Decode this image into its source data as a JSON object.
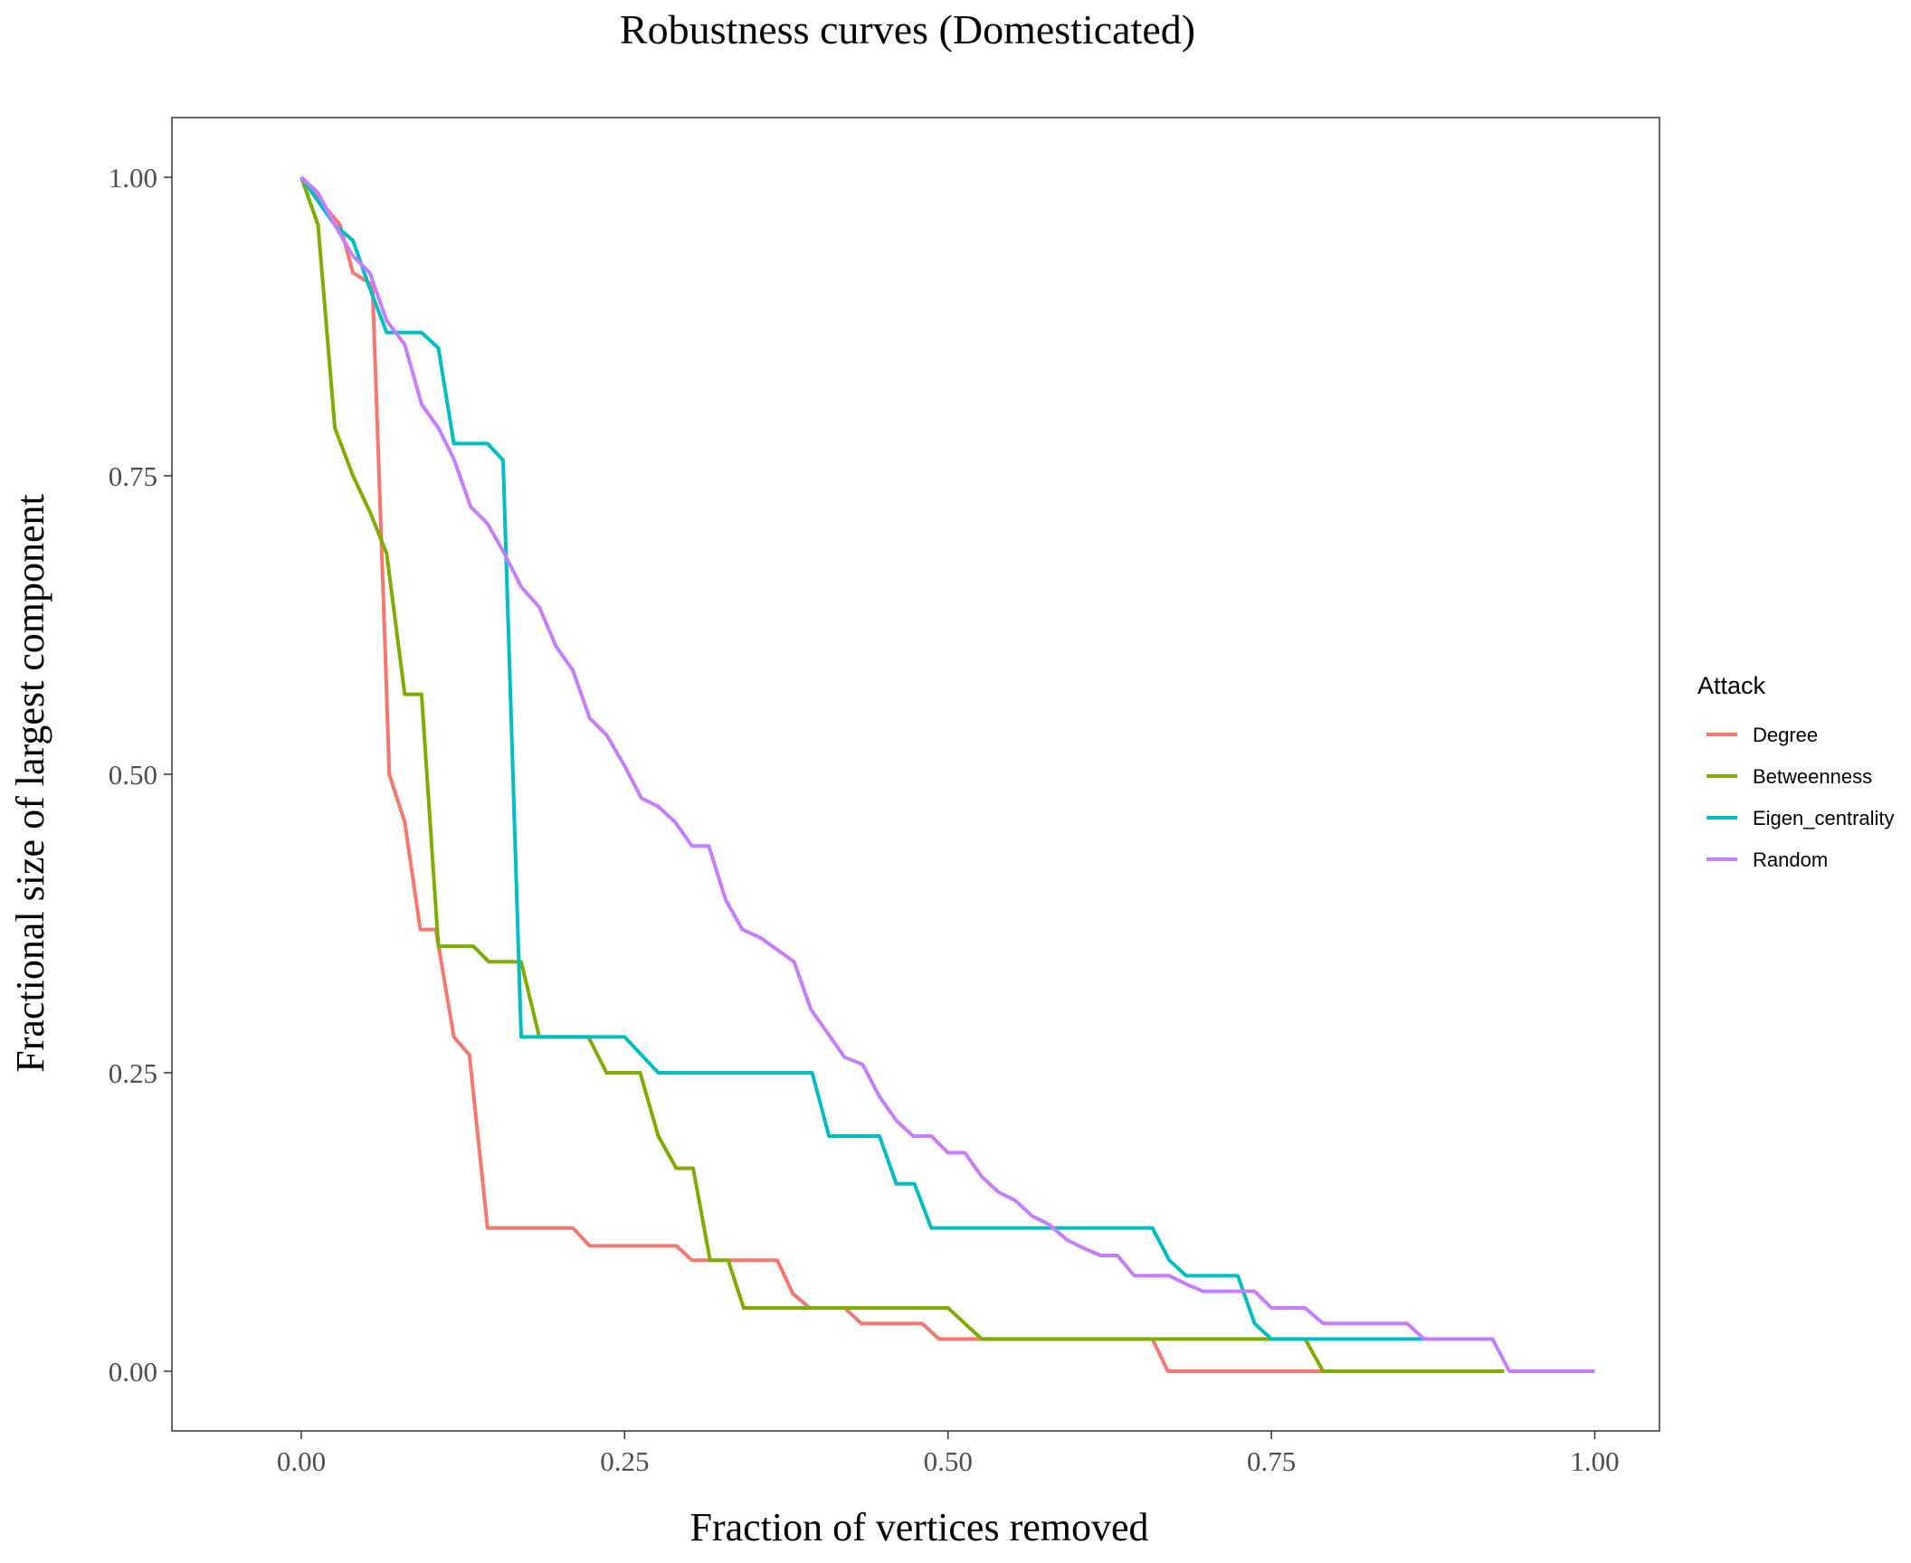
{
  "chart_data": {
    "type": "line",
    "title": "Robustness curves (Domesticated)",
    "xlabel": "Fraction of vertices removed",
    "ylabel": "Fractional size of largest component",
    "xlim": [
      -0.1,
      1.05
    ],
    "ylim": [
      -0.05,
      1.05
    ],
    "xticks": [
      "0.00",
      "0.25",
      "0.50",
      "0.75",
      "1.00"
    ],
    "xtick_values": [
      0,
      0.25,
      0.5,
      0.75,
      1.0
    ],
    "yticks": [
      "0.00",
      "0.25",
      "0.50",
      "0.75",
      "1.00"
    ],
    "ytick_values": [
      0,
      0.25,
      0.5,
      0.75,
      1.0
    ],
    "grid": false,
    "legend": {
      "title": "Attack",
      "position": "right"
    },
    "series": [
      {
        "name": "Degree",
        "color": "#F8766D",
        "points": [
          [
            0,
            1.0
          ],
          [
            0.03,
            0.96
          ],
          [
            0.04,
            0.92
          ],
          [
            0.055,
            0.91
          ],
          [
            0.065,
            0.6
          ],
          [
            0.068,
            0.5
          ],
          [
            0.08,
            0.46
          ],
          [
            0.092,
            0.37
          ],
          [
            0.104,
            0.37
          ],
          [
            0.118,
            0.28
          ],
          [
            0.13,
            0.265
          ],
          [
            0.144,
            0.12
          ],
          [
            0.21,
            0.12
          ],
          [
            0.223,
            0.105
          ],
          [
            0.29,
            0.105
          ],
          [
            0.302,
            0.093
          ],
          [
            0.368,
            0.093
          ],
          [
            0.38,
            0.065
          ],
          [
            0.393,
            0.053
          ],
          [
            0.42,
            0.053
          ],
          [
            0.433,
            0.04
          ],
          [
            0.48,
            0.04
          ],
          [
            0.493,
            0.027
          ],
          [
            0.658,
            0.027
          ],
          [
            0.67,
            0.0
          ],
          [
            0.79,
            0.0
          ]
        ]
      },
      {
        "name": "Betweenness",
        "color": "#7CAE00",
        "points": [
          [
            0,
            1.0
          ],
          [
            0.013,
            0.96
          ],
          [
            0.026,
            0.79
          ],
          [
            0.04,
            0.75
          ],
          [
            0.053,
            0.72
          ],
          [
            0.066,
            0.685
          ],
          [
            0.08,
            0.567
          ],
          [
            0.093,
            0.567
          ],
          [
            0.106,
            0.356
          ],
          [
            0.133,
            0.356
          ],
          [
            0.145,
            0.343
          ],
          [
            0.17,
            0.343
          ],
          [
            0.184,
            0.28
          ],
          [
            0.222,
            0.28
          ],
          [
            0.236,
            0.25
          ],
          [
            0.262,
            0.25
          ],
          [
            0.276,
            0.197
          ],
          [
            0.29,
            0.17
          ],
          [
            0.303,
            0.17
          ],
          [
            0.316,
            0.093
          ],
          [
            0.33,
            0.093
          ],
          [
            0.342,
            0.053
          ],
          [
            0.5,
            0.053
          ],
          [
            0.513,
            0.04
          ],
          [
            0.526,
            0.027
          ],
          [
            0.776,
            0.027
          ],
          [
            0.79,
            0.0
          ],
          [
            0.93,
            0.0
          ]
        ]
      },
      {
        "name": "Eigen_centrality",
        "color": "#00BFC4",
        "points": [
          [
            0,
            1.0
          ],
          [
            0.026,
            0.96
          ],
          [
            0.04,
            0.947
          ],
          [
            0.053,
            0.907
          ],
          [
            0.066,
            0.87
          ],
          [
            0.093,
            0.87
          ],
          [
            0.106,
            0.857
          ],
          [
            0.118,
            0.777
          ],
          [
            0.144,
            0.777
          ],
          [
            0.156,
            0.763
          ],
          [
            0.17,
            0.28
          ],
          [
            0.25,
            0.28
          ],
          [
            0.276,
            0.25
          ],
          [
            0.395,
            0.25
          ],
          [
            0.408,
            0.197
          ],
          [
            0.447,
            0.197
          ],
          [
            0.46,
            0.157
          ],
          [
            0.474,
            0.157
          ],
          [
            0.487,
            0.12
          ],
          [
            0.658,
            0.12
          ],
          [
            0.671,
            0.093
          ],
          [
            0.684,
            0.08
          ],
          [
            0.724,
            0.08
          ],
          [
            0.737,
            0.04
          ],
          [
            0.75,
            0.027
          ],
          [
            0.87,
            0.027
          ]
        ]
      },
      {
        "name": "Random",
        "color": "#C77CFF",
        "points": [
          [
            0,
            1.0
          ],
          [
            0.013,
            0.987
          ],
          [
            0.026,
            0.96
          ],
          [
            0.04,
            0.934
          ],
          [
            0.053,
            0.92
          ],
          [
            0.066,
            0.88
          ],
          [
            0.08,
            0.86
          ],
          [
            0.093,
            0.81
          ],
          [
            0.106,
            0.79
          ],
          [
            0.118,
            0.764
          ],
          [
            0.131,
            0.724
          ],
          [
            0.144,
            0.71
          ],
          [
            0.157,
            0.685
          ],
          [
            0.17,
            0.657
          ],
          [
            0.184,
            0.64
          ],
          [
            0.197,
            0.607
          ],
          [
            0.21,
            0.587
          ],
          [
            0.223,
            0.547
          ],
          [
            0.236,
            0.533
          ],
          [
            0.25,
            0.507
          ],
          [
            0.263,
            0.48
          ],
          [
            0.276,
            0.473
          ],
          [
            0.289,
            0.46
          ],
          [
            0.302,
            0.44
          ],
          [
            0.315,
            0.44
          ],
          [
            0.328,
            0.395
          ],
          [
            0.341,
            0.37
          ],
          [
            0.355,
            0.363
          ],
          [
            0.368,
            0.353
          ],
          [
            0.381,
            0.343
          ],
          [
            0.394,
            0.303
          ],
          [
            0.407,
            0.283
          ],
          [
            0.42,
            0.263
          ],
          [
            0.434,
            0.257
          ],
          [
            0.447,
            0.23
          ],
          [
            0.46,
            0.21
          ],
          [
            0.473,
            0.197
          ],
          [
            0.487,
            0.197
          ],
          [
            0.5,
            0.183
          ],
          [
            0.513,
            0.183
          ],
          [
            0.526,
            0.163
          ],
          [
            0.539,
            0.15
          ],
          [
            0.552,
            0.143
          ],
          [
            0.565,
            0.13
          ],
          [
            0.578,
            0.123
          ],
          [
            0.592,
            0.11
          ],
          [
            0.605,
            0.103
          ],
          [
            0.618,
            0.097
          ],
          [
            0.631,
            0.097
          ],
          [
            0.644,
            0.08
          ],
          [
            0.671,
            0.08
          ],
          [
            0.684,
            0.073
          ],
          [
            0.697,
            0.067
          ],
          [
            0.737,
            0.067
          ],
          [
            0.75,
            0.053
          ],
          [
            0.776,
            0.053
          ],
          [
            0.79,
            0.04
          ],
          [
            0.855,
            0.04
          ],
          [
            0.868,
            0.027
          ],
          [
            0.921,
            0.027
          ],
          [
            0.934,
            0.0
          ],
          [
            1.0,
            0.0
          ]
        ]
      }
    ]
  }
}
